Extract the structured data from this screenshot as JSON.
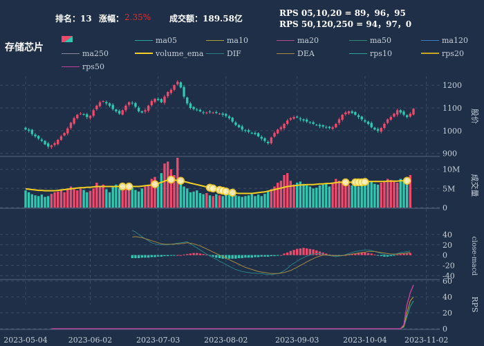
{
  "header": {
    "rank_label": "排名：13",
    "change_label": "涨幅：",
    "change_value": "2.35%",
    "turnover_label": "成交额：189.58亿",
    "rps_line1": "RPS 05,10,20 = 89，96，95",
    "rps_line2": "RPS 50,120,250 = 94，97，0",
    "sector_name": "存储芯片"
  },
  "colors": {
    "background": "#1e2f47",
    "up": "#ef4a6c",
    "down": "#2fc7b0",
    "change_text": "#e0302f",
    "volume_ema": "#f5d023",
    "grid": "#3a4d66"
  },
  "legend": [
    {
      "name": "ma05",
      "color": "#2aa7a0"
    },
    {
      "name": "ma10",
      "color": "#b0a23a"
    },
    {
      "name": "ma20",
      "color": "#b04a8c"
    },
    {
      "name": "ma50",
      "color": "#2e8b76"
    },
    {
      "name": "ma120",
      "color": "#3c7fc4"
    },
    {
      "name": "ma250",
      "color": "#8a8aa0"
    },
    {
      "name": "volume_ema",
      "color": "#f5d023"
    },
    {
      "name": "DIF",
      "color": "#2a7f86"
    },
    {
      "name": "DEA",
      "color": "#a68a42"
    },
    {
      "name": "rps10",
      "color": "#2aa7a0"
    },
    {
      "name": "rps20",
      "color": "#c8a820"
    },
    {
      "name": "rps50",
      "color": "#c0409a"
    }
  ],
  "chart_data": {
    "type": "candlestick",
    "x_tick_labels": [
      "2023-05-04",
      "2023-06-02",
      "2023-07-03",
      "2023-08-02",
      "2023-09-03",
      "2023-10-04",
      "2023-11-02"
    ],
    "x_tick_index": [
      0,
      20,
      41,
      62,
      84,
      105,
      124
    ],
    "price": {
      "ylabel": "股价",
      "ylim": [
        890,
        1240
      ],
      "ticks": [
        900,
        1000,
        1100,
        1200
      ],
      "close": [
        1005,
        1000,
        985,
        975,
        965,
        955,
        940,
        930,
        935,
        945,
        960,
        975,
        990,
        1010,
        1035,
        1055,
        1070,
        1075,
        1070,
        1060,
        1065,
        1090,
        1110,
        1125,
        1130,
        1120,
        1110,
        1095,
        1085,
        1075,
        1090,
        1110,
        1125,
        1120,
        1105,
        1085,
        1080,
        1090,
        1110,
        1130,
        1140,
        1135,
        1125,
        1150,
        1170,
        1180,
        1200,
        1215,
        1190,
        1150,
        1120,
        1100,
        1095,
        1090,
        1085,
        1080,
        1080,
        1082,
        1080,
        1078,
        1075,
        1070,
        1065,
        1055,
        1040,
        1025,
        1015,
        1005,
        1000,
        995,
        990,
        985,
        975,
        965,
        955,
        945,
        970,
        990,
        1005,
        1015,
        1030,
        1045,
        1055,
        1060,
        1058,
        1050,
        1045,
        1040,
        1035,
        1030,
        1025,
        1020,
        1018,
        1015,
        1012,
        1015,
        1030,
        1050,
        1070,
        1080,
        1085,
        1078,
        1070,
        1060,
        1050,
        1040,
        1030,
        1015,
        1005,
        1000,
        1012,
        1030,
        1050,
        1060,
        1075,
        1090,
        1080,
        1070,
        1060,
        1075,
        1096
      ],
      "volume": {
        "ylabel": "成交量",
        "ylim": [
          0,
          13
        ],
        "ticks": [
          0,
          5,
          10
        ],
        "tick_labels": [
          "0",
          "5M",
          "10M"
        ],
        "values": [
          4.5,
          4.0,
          3.5,
          3.2,
          3.0,
          3.4,
          2.8,
          3.0,
          3.6,
          4.0,
          4.2,
          4.5,
          4.0,
          5.0,
          5.5,
          4.8,
          4.5,
          5.0,
          4.6,
          4.0,
          4.4,
          5.0,
          6.5,
          5.5,
          6.0,
          4.8,
          4.0,
          5.5,
          6.0,
          5.0,
          4.5,
          5.5,
          6.0,
          5.2,
          4.6,
          4.2,
          5.0,
          5.5,
          6.0,
          7.5,
          8.0,
          6.5,
          9.0,
          11.5,
          12.0,
          10.0,
          8.5,
          13.0,
          7.0,
          5.5,
          5.0,
          4.0,
          4.2,
          4.5,
          3.8,
          3.5,
          3.8,
          3.2,
          3.0,
          3.5,
          3.2,
          3.0,
          3.6,
          4.0,
          3.5,
          3.2,
          3.0,
          2.8,
          3.0,
          3.2,
          3.5,
          3.0,
          3.4,
          3.0,
          3.6,
          4.2,
          4.8,
          5.5,
          6.5,
          7.0,
          8.5,
          9.0,
          7.0,
          6.0,
          6.5,
          6.8,
          6.2,
          5.8,
          5.5,
          5.0,
          5.2,
          5.8,
          6.0,
          6.2,
          5.5,
          6.5,
          7.5,
          7.0,
          6.5,
          7.0,
          6.0,
          5.8,
          6.0,
          5.5,
          6.0,
          6.5,
          7.0,
          6.8,
          6.2,
          6.0,
          6.5,
          7.0,
          7.5,
          7.2,
          7.0,
          6.5,
          7.5,
          7.0,
          7.5,
          8.5
        ]
      },
      "volume_ema": [
        4.9,
        4.8,
        4.7,
        4.6,
        4.5,
        4.5,
        4.4,
        4.4,
        4.4,
        4.4,
        4.5,
        4.6,
        4.7,
        4.8,
        4.9,
        5.0,
        5.1,
        5.2,
        5.2,
        5.3,
        5.3,
        5.4,
        5.5,
        5.5,
        5.5,
        5.5,
        5.5,
        5.5,
        5.5,
        5.5,
        5.5,
        5.5,
        5.5,
        5.5,
        5.5,
        5.5,
        5.6,
        5.7,
        5.8,
        5.9,
        6.1,
        6.3,
        6.6,
        6.9,
        7.2,
        7.3,
        7.2,
        7.1,
        7.0,
        6.8,
        6.6,
        6.4,
        6.2,
        6.0,
        5.8,
        5.6,
        5.4,
        5.2,
        5.0,
        4.8,
        4.6,
        4.4,
        4.2,
        4.0,
        3.9,
        3.8,
        3.7,
        3.7,
        3.7,
        3.7,
        3.7,
        3.8,
        3.9,
        4.0,
        4.1,
        4.3,
        4.5,
        4.7,
        4.9,
        5.1,
        5.3,
        5.5,
        5.6,
        5.7,
        5.8,
        5.9,
        5.9,
        6.0,
        6.0,
        6.0,
        6.1,
        6.2,
        6.2,
        6.3,
        6.3,
        6.4,
        6.5,
        6.6,
        6.6,
        6.6,
        6.6,
        6.6,
        6.6,
        6.6,
        6.6,
        6.7,
        6.8,
        6.8,
        6.8,
        6.8,
        6.8,
        6.8,
        6.9,
        6.9,
        6.9,
        6.9,
        7.0,
        7.0,
        7.0,
        7.1
      ],
      "highlight_index": [
        30,
        32,
        40,
        45,
        48,
        57,
        58,
        60,
        61,
        62,
        64,
        99,
        102,
        103,
        104,
        105,
        118
      ]
    },
    "macd": {
      "ylabel": "close-macd",
      "ylim": [
        -45,
        48
      ],
      "ticks": [
        -40,
        -20,
        0,
        20,
        40
      ],
      "start_index": 33,
      "dif": [
        48,
        45,
        40,
        36,
        32,
        28,
        24,
        22,
        20,
        20,
        20,
        20,
        21,
        22,
        23,
        24,
        25,
        26,
        22,
        18,
        14,
        10,
        6,
        2,
        -2,
        -5,
        -8,
        -12,
        -15,
        -18,
        -22,
        -25,
        -28,
        -30,
        -32,
        -33,
        -34,
        -35,
        -35,
        -36,
        -36,
        -37,
        -38,
        -38,
        -37,
        -36,
        -34,
        -30,
        -26,
        -20,
        -16,
        -12,
        -8,
        -5,
        -2,
        0,
        2,
        3,
        3,
        2,
        0,
        -1,
        -2,
        -3,
        -2,
        -1,
        1,
        3,
        5,
        7,
        8,
        9,
        10,
        10,
        9,
        7,
        5,
        3,
        1,
        0,
        0,
        1,
        3,
        5,
        6,
        7,
        8
      ],
      "dea": [
        35,
        36,
        35,
        34,
        32,
        30,
        28,
        26,
        24,
        22,
        21,
        21,
        21,
        21,
        22,
        22,
        23,
        24,
        23,
        22,
        20,
        18,
        15,
        12,
        9,
        6,
        3,
        0,
        -3,
        -6,
        -9,
        -12,
        -15,
        -18,
        -21,
        -24,
        -26,
        -28,
        -30,
        -32,
        -33,
        -34,
        -35,
        -36,
        -36,
        -36,
        -35,
        -34,
        -32,
        -30,
        -27,
        -24,
        -20,
        -17,
        -13,
        -10,
        -7,
        -4,
        -2,
        0,
        0,
        0,
        -1,
        -1,
        -1,
        -1,
        0,
        1,
        2,
        3,
        4,
        5,
        6,
        7,
        7,
        7,
        6,
        5,
        4,
        3,
        2,
        2,
        2,
        3,
        3,
        4,
        5
      ],
      "hist": [
        -6,
        -6,
        -6,
        -5,
        -5,
        -5,
        -4,
        -4,
        -3,
        -3,
        -2,
        -2,
        -1,
        -1,
        0,
        0,
        1,
        2,
        3,
        4,
        4,
        3,
        2,
        1,
        -1,
        -3,
        -5,
        -6,
        -7,
        -7,
        -7,
        -7,
        -7,
        -6,
        -6,
        -5,
        -5,
        -5,
        -4,
        -4,
        -3,
        -3,
        -3,
        -2,
        -2,
        -1,
        0,
        3,
        5,
        8,
        10,
        12,
        13,
        14,
        13,
        12,
        11,
        9,
        7,
        5,
        3,
        1,
        0,
        -1,
        -1,
        -1,
        0,
        1,
        2,
        3,
        4,
        5,
        5,
        4,
        3,
        1,
        -1,
        -2,
        -3,
        -3,
        -2,
        -1,
        1,
        2,
        3,
        3,
        4
      ]
    },
    "rps": {
      "ylabel": "RPS",
      "ylim": [
        0,
        60
      ],
      "ticks": [
        0,
        20,
        40,
        60
      ],
      "rps50_flat_until_index": 114,
      "rps50_final": [
        0,
        0,
        0,
        5,
        30,
        45,
        55
      ],
      "rps20_final": [
        0,
        0,
        0,
        3,
        20,
        35,
        40
      ],
      "rps10_final": [
        0,
        0,
        0,
        2,
        15,
        28,
        35
      ]
    }
  }
}
